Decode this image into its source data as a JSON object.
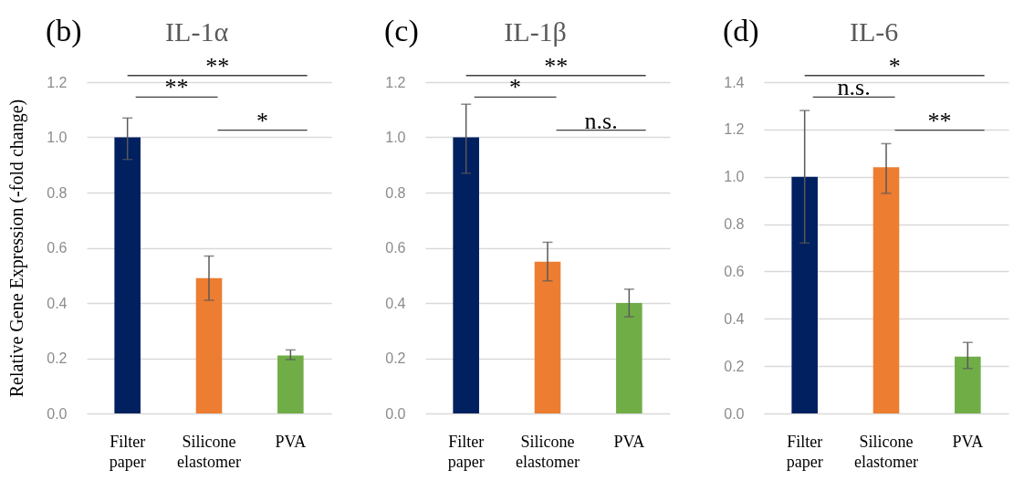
{
  "chart_data": [
    {
      "type": "bar",
      "title": "IL-1α",
      "ylabel": "Relative Gene Expression (-fold change)",
      "categories": [
        "Filter paper",
        "Silicone elastomer",
        "PVA"
      ],
      "values": [
        1.0,
        0.49,
        0.21
      ],
      "errors": [
        [
          0.92,
          1.07
        ],
        [
          0.41,
          0.57
        ],
        [
          0.195,
          0.23
        ]
      ],
      "colors": [
        "#002060",
        "#ed7d31",
        "#70ad47"
      ],
      "ylim": [
        0,
        1.2
      ],
      "yticks": [
        {
          "value": 0,
          "label": "0.0"
        },
        {
          "value": 0.2,
          "label": "0.2"
        },
        {
          "value": 0.4,
          "label": "0.4"
        },
        {
          "value": 0.6,
          "label": "0.6"
        },
        {
          "value": 0.8,
          "label": "0.8"
        },
        {
          "value": 1.0,
          "label": "1.0"
        },
        {
          "value": 1.2,
          "label": "1.2"
        }
      ],
      "grid": "y",
      "annotations": [
        "(b)",
        "**",
        "**",
        "*"
      ]
    },
    {
      "type": "bar",
      "title": "IL-1β",
      "categories": [
        "Filter paper",
        "Silicone elastomer",
        "PVA"
      ],
      "values": [
        1.0,
        0.55,
        0.4
      ],
      "errors": [
        [
          0.87,
          1.12
        ],
        [
          0.48,
          0.62
        ],
        [
          0.35,
          0.45
        ]
      ],
      "colors": [
        "#002060",
        "#ed7d31",
        "#70ad47"
      ],
      "ylim": [
        0,
        1.2
      ],
      "yticks": [
        {
          "value": 0,
          "label": "0.0"
        },
        {
          "value": 0.2,
          "label": "0.2"
        },
        {
          "value": 0.4,
          "label": "0.4"
        },
        {
          "value": 0.6,
          "label": "0.6"
        },
        {
          "value": 0.8,
          "label": "0.8"
        },
        {
          "value": 1.0,
          "label": "1.0"
        },
        {
          "value": 1.2,
          "label": "1.2"
        }
      ],
      "grid": "y",
      "annotations": [
        "(c)",
        "**",
        "*",
        "n.s."
      ]
    },
    {
      "type": "bar",
      "title": "IL-6",
      "categories": [
        "Filter paper",
        "Silicone elastomer",
        "PVA"
      ],
      "values": [
        1.0,
        1.04,
        0.24
      ],
      "errors": [
        [
          0.72,
          1.28
        ],
        [
          0.93,
          1.14
        ],
        [
          0.19,
          0.3
        ]
      ],
      "colors": [
        "#002060",
        "#ed7d31",
        "#70ad47"
      ],
      "ylim": [
        0,
        1.4
      ],
      "yticks": [
        {
          "value": 0,
          "label": "0.0"
        },
        {
          "value": 0.2,
          "label": "0.2"
        },
        {
          "value": 0.4,
          "label": "0.4"
        },
        {
          "value": 0.6,
          "label": "0.6"
        },
        {
          "value": 0.8,
          "label": "0.8"
        },
        {
          "value": 1.0,
          "label": "1.0"
        },
        {
          "value": 1.2,
          "label": "1.2"
        },
        {
          "value": 1.4,
          "label": "1.4"
        }
      ],
      "grid": "y",
      "annotations": [
        "(d)",
        "*",
        "n.s.",
        "**"
      ]
    }
  ]
}
